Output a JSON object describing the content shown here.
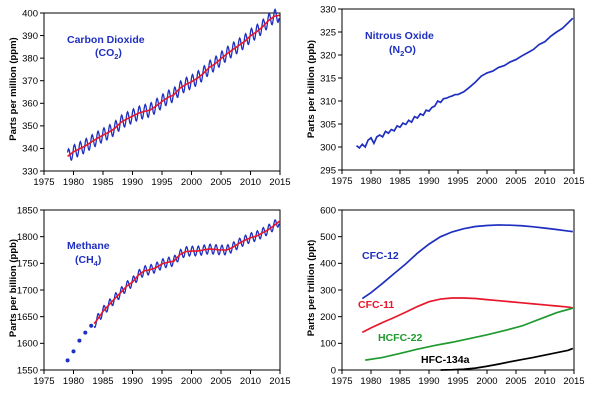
{
  "chart_data": [
    {
      "type": "line",
      "ylabel": "Parts per million (ppm)",
      "xlim": [
        1975,
        2015
      ],
      "ylim": [
        330,
        400
      ],
      "xticks": [
        1975,
        1980,
        1985,
        1990,
        1995,
        2000,
        2005,
        2010,
        2015
      ],
      "yticks": [
        330,
        340,
        350,
        360,
        370,
        380,
        390,
        400
      ],
      "annotations": [
        {
          "text": "Carbon Dioxide",
          "color": "#1f2fbf"
        },
        {
          "text": "(CO2)",
          "color": "#1f2fbf"
        }
      ],
      "seasonal_amplitude": 3,
      "series": [
        {
          "kind": "monthly",
          "color": "#1f2fbf",
          "x": [
            1979,
            1980,
            1981,
            1982,
            1983,
            1984,
            1985,
            1986,
            1987,
            1988,
            1989,
            1990,
            1991,
            1992,
            1993,
            1994,
            1995,
            1996,
            1997,
            1998,
            1999,
            2000,
            2001,
            2002,
            2003,
            2004,
            2005,
            2006,
            2007,
            2008,
            2009,
            2010,
            2011,
            2012,
            2013,
            2014,
            2014.9
          ],
          "y": [
            336.5,
            338.5,
            339.8,
            341.1,
            342.8,
            344.4,
            345.9,
            347.2,
            348.9,
            351.5,
            353.0,
            354.3,
            355.6,
            356.4,
            357.0,
            358.8,
            360.8,
            362.6,
            363.7,
            366.6,
            368.3,
            369.5,
            371.1,
            373.2,
            375.8,
            377.5,
            379.8,
            381.9,
            383.8,
            385.6,
            387.4,
            389.9,
            391.6,
            393.8,
            396.5,
            398.5,
            399.0
          ]
        },
        {
          "kind": "trend",
          "color": "#e8172a",
          "x": [
            1979,
            1980,
            1981,
            1982,
            1983,
            1984,
            1985,
            1986,
            1987,
            1988,
            1989,
            1990,
            1991,
            1992,
            1993,
            1994,
            1995,
            1996,
            1997,
            1998,
            1999,
            2000,
            2001,
            2002,
            2003,
            2004,
            2005,
            2006,
            2007,
            2008,
            2009,
            2010,
            2011,
            2012,
            2013,
            2014,
            2014.9
          ],
          "y": [
            336.5,
            338.5,
            339.8,
            341.1,
            342.8,
            344.4,
            345.9,
            347.2,
            348.9,
            351.5,
            353.0,
            354.3,
            355.6,
            356.4,
            357.0,
            358.8,
            360.8,
            362.6,
            363.7,
            366.6,
            368.3,
            369.5,
            371.1,
            373.2,
            375.8,
            377.5,
            379.8,
            381.9,
            383.8,
            385.6,
            387.4,
            389.9,
            391.6,
            393.8,
            396.5,
            398.5,
            399.0
          ]
        }
      ]
    },
    {
      "type": "line",
      "ylabel": "Parts per billion (ppb)",
      "xlim": [
        1975,
        2015
      ],
      "ylim": [
        295,
        330
      ],
      "xticks": [
        1975,
        1980,
        1985,
        1990,
        1995,
        2000,
        2005,
        2010,
        2015
      ],
      "yticks": [
        295,
        300,
        305,
        310,
        315,
        320,
        325,
        330
      ],
      "annotations": [
        {
          "text": "Nitrous Oxide",
          "color": "#1f2fbf"
        },
        {
          "text": "(N2O)",
          "color": "#1f2fbf"
        }
      ],
      "series": [
        {
          "kind": "line",
          "color": "#1f2fbf",
          "x": [
            1977.5,
            1978,
            1978.5,
            1979,
            1979.5,
            1980,
            1980.5,
            1981,
            1981.5,
            1982,
            1982.5,
            1983,
            1983.5,
            1984,
            1984.5,
            1985,
            1985.5,
            1986,
            1986.5,
            1987,
            1987.5,
            1988,
            1988.5,
            1989,
            1989.5,
            1990,
            1990.5,
            1991,
            1991.5,
            1992,
            1992.5,
            1993,
            1993.5,
            1994,
            1994.5,
            1995,
            1996,
            1997,
            1998,
            1999,
            2000,
            2001,
            2002,
            2003,
            2004,
            2005,
            2006,
            2007,
            2008,
            2009,
            2010,
            2011,
            2012,
            2013,
            2014,
            2014.8
          ],
          "y": [
            300.3,
            299.8,
            300.6,
            300.0,
            301.5,
            302.0,
            300.8,
            302.2,
            302.6,
            302.2,
            303.4,
            303.0,
            303.8,
            303.5,
            304.6,
            304.3,
            305.2,
            304.9,
            305.8,
            305.4,
            306.6,
            306.3,
            307.2,
            306.9,
            308.0,
            307.8,
            308.6,
            308.9,
            310.0,
            309.7,
            310.5,
            310.6,
            310.9,
            311.1,
            311.4,
            311.4,
            312.0,
            313.0,
            314.1,
            315.4,
            316.1,
            316.5,
            317.3,
            317.7,
            318.5,
            319.0,
            319.8,
            320.5,
            321.2,
            322.3,
            322.9,
            324.1,
            325.0,
            325.8,
            327.0,
            328.0
          ]
        }
      ]
    },
    {
      "type": "line",
      "ylabel": "Parts per billion (ppb)",
      "xlim": [
        1975,
        2015
      ],
      "ylim": [
        1550,
        1850
      ],
      "xticks": [
        1975,
        1980,
        1985,
        1990,
        1995,
        2000,
        2005,
        2010,
        2015
      ],
      "yticks": [
        1550,
        1600,
        1650,
        1700,
        1750,
        1800,
        1850
      ],
      "annotations": [
        {
          "text": "Methane",
          "color": "#1f2fbf"
        },
        {
          "text": "(CH4)",
          "color": "#1f2fbf"
        }
      ],
      "seasonal_amplitude": 9,
      "series": [
        {
          "kind": "points",
          "color": "#1f2fbf",
          "x": [
            1979,
            1980,
            1981,
            1982,
            1983
          ],
          "y": [
            1568,
            1585,
            1605,
            1620,
            1633
          ]
        },
        {
          "kind": "monthly",
          "color": "#1f2fbf",
          "x": [
            1983.5,
            1984,
            1985,
            1986,
            1987,
            1988,
            1989,
            1990,
            1991,
            1992,
            1993,
            1994,
            1995,
            1996,
            1997,
            1998,
            1999,
            2000,
            2001,
            2002,
            2003,
            2004,
            2005,
            2006,
            2007,
            2008,
            2009,
            2010,
            2011,
            2012,
            2013,
            2014,
            2014.9
          ],
          "y": [
            1637,
            1644,
            1660,
            1672,
            1684,
            1695,
            1707,
            1715,
            1728,
            1736,
            1738,
            1742,
            1749,
            1752,
            1754,
            1766,
            1772,
            1773,
            1773,
            1775,
            1777,
            1776,
            1775,
            1775,
            1780,
            1787,
            1793,
            1798,
            1801,
            1807,
            1813,
            1821,
            1829
          ]
        },
        {
          "kind": "trend",
          "color": "#e8172a",
          "x": [
            1983.5,
            1984,
            1985,
            1986,
            1987,
            1988,
            1989,
            1990,
            1991,
            1992,
            1993,
            1994,
            1995,
            1996,
            1997,
            1998,
            1999,
            2000,
            2001,
            2002,
            2003,
            2004,
            2005,
            2006,
            2007,
            2008,
            2009,
            2010,
            2011,
            2012,
            2013,
            2014,
            2014.9
          ],
          "y": [
            1637,
            1644,
            1660,
            1672,
            1684,
            1695,
            1707,
            1715,
            1728,
            1736,
            1738,
            1742,
            1749,
            1752,
            1754,
            1766,
            1772,
            1773,
            1773,
            1775,
            1777,
            1776,
            1775,
            1775,
            1780,
            1787,
            1793,
            1798,
            1801,
            1807,
            1813,
            1821,
            1829
          ]
        }
      ]
    },
    {
      "type": "line",
      "ylabel": "Parts per trillion (ppt)",
      "xlim": [
        1975,
        2015
      ],
      "ylim": [
        0,
        600
      ],
      "xticks": [
        1975,
        1980,
        1985,
        1990,
        1995,
        2000,
        2005,
        2010,
        2015
      ],
      "yticks": [
        0,
        100,
        200,
        300,
        400,
        500,
        600
      ],
      "annotations": [],
      "series": [
        {
          "kind": "line",
          "name": "CFC-12",
          "color": "#1f2fbf",
          "x": [
            1978.5,
            1980,
            1982,
            1984,
            1986,
            1988,
            1990,
            1992,
            1994,
            1996,
            1998,
            2000,
            2002,
            2004,
            2006,
            2008,
            2010,
            2012,
            2014,
            2014.8
          ],
          "y": [
            268,
            290,
            325,
            362,
            398,
            438,
            472,
            500,
            518,
            530,
            538,
            542,
            544,
            543,
            541,
            537,
            532,
            527,
            521,
            519
          ]
        },
        {
          "kind": "line",
          "name": "CFC-11",
          "color": "#e8172a",
          "x": [
            1978.5,
            1980,
            1982,
            1984,
            1986,
            1988,
            1990,
            1992,
            1993,
            1994,
            1996,
            1998,
            2000,
            2002,
            2004,
            2006,
            2008,
            2010,
            2012,
            2014,
            2014.8
          ],
          "y": [
            141,
            158,
            178,
            197,
            217,
            238,
            256,
            266,
            268,
            270,
            270,
            268,
            264,
            260,
            256,
            252,
            248,
            244,
            240,
            236,
            233
          ]
        },
        {
          "kind": "line",
          "name": "HCFC-22",
          "color": "#1e9a2e",
          "x": [
            1979,
            1982,
            1985,
            1988,
            1991,
            1994,
            1997,
            2000,
            2003,
            2006,
            2009,
            2012,
            2014.8
          ],
          "y": [
            37,
            47,
            62,
            78,
            92,
            104,
            118,
            132,
            148,
            165,
            190,
            215,
            232
          ]
        },
        {
          "kind": "line",
          "name": "HFC-134a",
          "color": "#000000",
          "x": [
            1992,
            1994,
            1996,
            1998,
            2000,
            2002,
            2004,
            2006,
            2008,
            2010,
            2012,
            2014,
            2014.8
          ],
          "y": [
            0,
            1,
            3,
            7,
            14,
            22,
            31,
            39,
            47,
            56,
            65,
            74,
            81
          ]
        }
      ]
    }
  ]
}
